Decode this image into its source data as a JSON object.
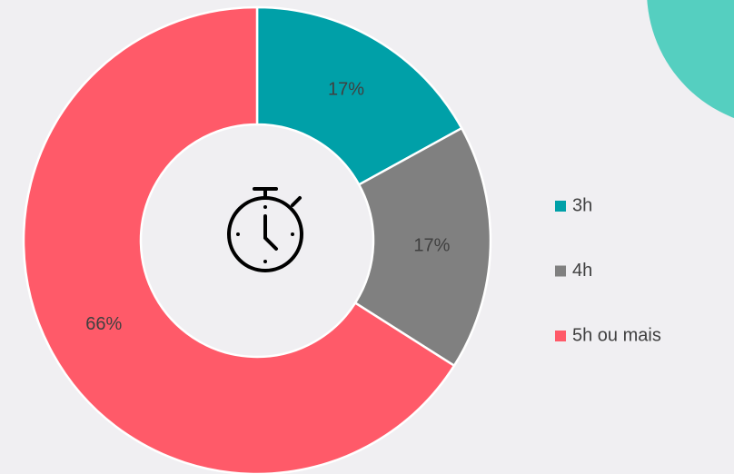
{
  "chart_data": {
    "type": "donut",
    "categories": [
      "3h",
      "4h",
      "5h ou mais"
    ],
    "values": [
      17,
      17,
      66
    ],
    "value_labels": [
      "17%",
      "17%",
      "66%"
    ],
    "colors": [
      "#00a0a8",
      "#808080",
      "#ff5a69"
    ],
    "legend": "right"
  }
}
